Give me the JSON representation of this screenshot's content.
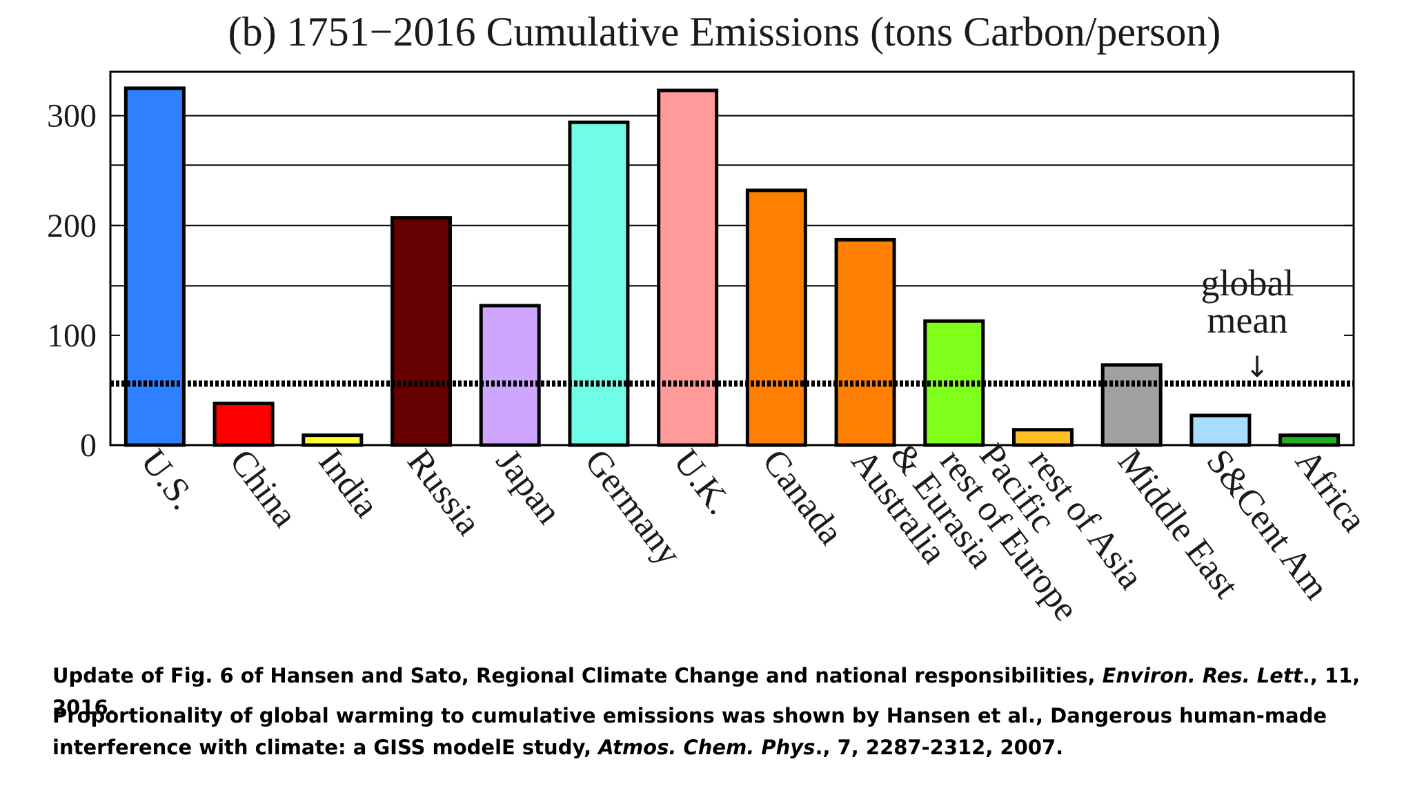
{
  "chart_data": {
    "type": "bar",
    "title": "(b)  1751−2016 Cumulative Emissions (tons Carbon/person)",
    "xlabel": "",
    "ylabel": "",
    "ylim": [
      0,
      340
    ],
    "yticks": [
      0,
      100,
      200,
      300
    ],
    "ytick_labels": [
      "0",
      "100",
      "200",
      "300"
    ],
    "gridlines": [
      145,
      200,
      255,
      300,
      340
    ],
    "categories": [
      "U.S.",
      "China",
      "India",
      "Russia",
      "Japan",
      "Germany",
      "U.K.",
      "Canada",
      "Australia",
      "rest of Europe & Eurasia",
      "rest of Asia Pacific",
      "Middle East",
      "S&Cent Am",
      "Africa"
    ],
    "category_label_lines": [
      [
        "U.S."
      ],
      [
        "China"
      ],
      [
        "India"
      ],
      [
        "Russia"
      ],
      [
        "Japan"
      ],
      [
        "Germany"
      ],
      [
        "U.K."
      ],
      [
        "Canada"
      ],
      [
        "Australia"
      ],
      [
        "rest of Europe",
        "& Eurasia"
      ],
      [
        "rest of Asia",
        "Pacific"
      ],
      [
        "Middle East"
      ],
      [
        "S&Cent Am"
      ],
      [
        "Africa"
      ]
    ],
    "values": [
      325,
      38,
      9,
      207,
      127,
      294,
      323,
      232,
      187,
      113,
      14,
      73,
      27,
      9
    ],
    "colors": [
      "#2f80ff",
      "#ff0000",
      "#ffff33",
      "#660000",
      "#cfa6ff",
      "#6ffde8",
      "#ff9a9a",
      "#ff8000",
      "#ff8000",
      "#7fff1a",
      "#ffc024",
      "#a0a0a0",
      "#a8dcff",
      "#20b020"
    ],
    "global_mean": {
      "value": 56,
      "label_lines": [
        "global",
        "mean"
      ],
      "arrow_glyph": "↓"
    },
    "grid": true,
    "legend": "none"
  },
  "caption": {
    "line1_prefix": "Update of Fig. 6 of Hansen and Sato, Regional Climate Change and national responsibilities, ",
    "line1_journal": "Environ. Res. Lett",
    "line1_suffix": "., 11, 2016.",
    "line2_prefix": "Proportionality of global warming to cumulative emissions was shown by Hansen et al., Dangerous human-made interference with climate: a GISS modelE study, ",
    "line2_journal": "Atmos. Chem. Phys",
    "line2_suffix": "., 7, 2287-2312, 2007."
  }
}
